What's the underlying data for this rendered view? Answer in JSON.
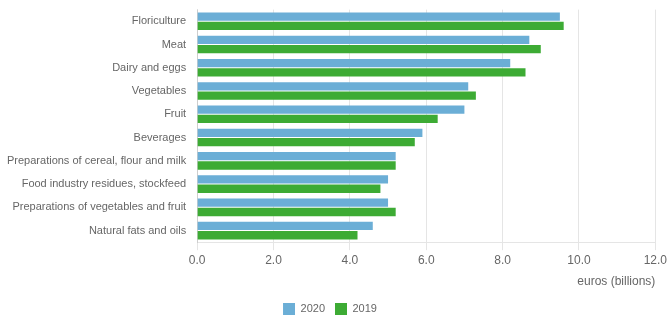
{
  "chart_data": {
    "type": "bar",
    "orientation": "horizontal",
    "categories": [
      "Natural fats and oils",
      "Preparations of vegetables and fruit",
      "Food industry residues, stockfeed",
      "Preparations of cereal, flour and milk",
      "Beverages",
      "Fruit",
      "Vegetables",
      "Dairy and eggs",
      "Meat",
      "Floriculture"
    ],
    "series": [
      {
        "name": "2020",
        "color": "#6baed6",
        "values": [
          4.6,
          5.0,
          5.0,
          5.2,
          5.9,
          7.0,
          7.1,
          8.2,
          8.7,
          9.5
        ]
      },
      {
        "name": "2019",
        "color": "#3dab34",
        "values": [
          4.2,
          5.2,
          4.8,
          5.2,
          5.7,
          6.3,
          7.3,
          8.6,
          9.0,
          9.6
        ]
      }
    ],
    "xlabel": "euros (billions)",
    "xlim": [
      0,
      12.0
    ],
    "xticks": [
      {
        "value": 0.0,
        "label": "0.0"
      },
      {
        "value": 2.0,
        "label": "2.0"
      },
      {
        "value": 4.0,
        "label": "4.0"
      },
      {
        "value": 6.0,
        "label": "6.0"
      },
      {
        "value": 8.0,
        "label": "8.0"
      },
      {
        "value": 10.0,
        "label": "10.0"
      },
      {
        "value": 12.0,
        "label": "12.0"
      }
    ],
    "grid": true,
    "legend": "bottom"
  }
}
